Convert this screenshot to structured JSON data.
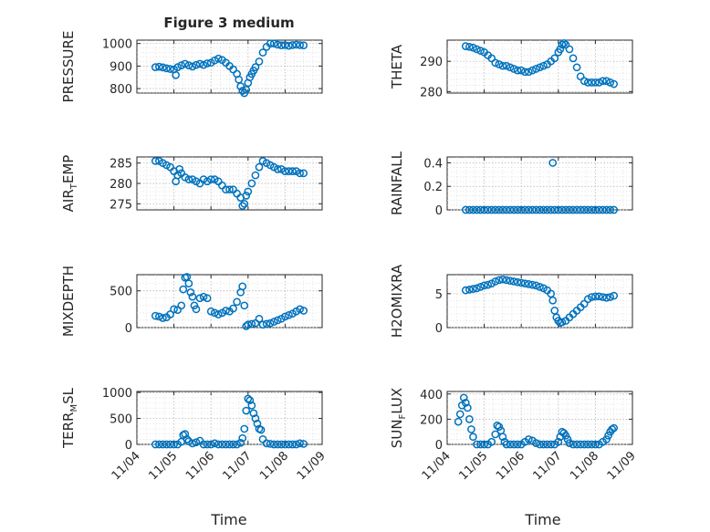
{
  "figure": {
    "title": "Figure 3 medium",
    "background": "#ffffff",
    "marker_color": "#0072BD",
    "x_label": "Time",
    "x_ticks": [
      "11/04",
      "11/05",
      "11/06",
      "11/07",
      "11/08",
      "11/09"
    ]
  },
  "chart_data": [
    {
      "type": "scatter",
      "title": "Figure 3 medium",
      "ylabel": "PRESSURE",
      "xlabel": "",
      "xlim": [
        0,
        5
      ],
      "ylim": [
        780,
        1015
      ],
      "yticks": [
        800,
        900,
        1000
      ],
      "ytick_labels": [
        "800",
        "900",
        "1000"
      ],
      "grid": true,
      "minor_grid": true,
      "x_unit": "days since 11/04",
      "series": [
        {
          "x": [
            0.5,
            0.6,
            0.7,
            0.8,
            0.9,
            1.0,
            1.05,
            1.1,
            1.2,
            1.3,
            1.4,
            1.5,
            1.6,
            1.7,
            1.8,
            1.9,
            2.0,
            2.1,
            2.2,
            2.3,
            2.4,
            2.5,
            2.6,
            2.7,
            2.75,
            2.8,
            2.85,
            2.9,
            2.95,
            3.0,
            3.05,
            3.1,
            3.15,
            3.2,
            3.3,
            3.4,
            3.5,
            3.6,
            3.7,
            3.8,
            3.9,
            4.0,
            4.1,
            4.2,
            4.3,
            4.4,
            4.5
          ],
          "y": [
            895,
            897,
            894,
            890,
            887,
            885,
            860,
            895,
            903,
            910,
            903,
            898,
            905,
            910,
            905,
            912,
            915,
            925,
            933,
            927,
            915,
            900,
            885,
            865,
            840,
            810,
            790,
            780,
            795,
            825,
            850,
            865,
            880,
            895,
            920,
            960,
            985,
            1000,
            1000,
            995,
            992,
            993,
            990,
            993,
            995,
            993,
            992
          ]
        }
      ]
    },
    {
      "type": "scatter",
      "title": "",
      "ylabel": "THETA",
      "xlabel": "",
      "xlim": [
        0,
        5
      ],
      "ylim": [
        279.5,
        297
      ],
      "yticks": [
        280,
        290
      ],
      "ytick_labels": [
        "280",
        "290"
      ],
      "grid": true,
      "minor_grid": true,
      "series": [
        {
          "x": [
            0.5,
            0.6,
            0.7,
            0.8,
            0.9,
            1.0,
            1.1,
            1.2,
            1.3,
            1.4,
            1.5,
            1.6,
            1.7,
            1.8,
            1.9,
            2.0,
            2.1,
            2.2,
            2.3,
            2.4,
            2.5,
            2.6,
            2.7,
            2.8,
            2.9,
            3.0,
            3.05,
            3.1,
            3.15,
            3.2,
            3.3,
            3.4,
            3.5,
            3.6,
            3.7,
            3.8,
            3.9,
            4.0,
            4.1,
            4.2,
            4.3,
            4.4,
            4.5
          ],
          "y": [
            295,
            294.8,
            294.5,
            294,
            293.5,
            293,
            292,
            291,
            289.5,
            289,
            288.5,
            288.5,
            288,
            287.5,
            287,
            287,
            286.5,
            286.5,
            287,
            287.5,
            288,
            288.5,
            289,
            290,
            291,
            293,
            294,
            295.5,
            296,
            295.5,
            294,
            291,
            288,
            285,
            283.5,
            283,
            283,
            283,
            283,
            283.5,
            283.5,
            283,
            282.5
          ]
        }
      ]
    },
    {
      "type": "scatter",
      "title": "",
      "ylabel": "AIR_TEMP",
      "xlabel": "",
      "xlim": [
        0,
        5
      ],
      "ylim": [
        273.5,
        286.5
      ],
      "yticks": [
        275,
        280,
        285
      ],
      "ytick_labels": [
        "275",
        "280",
        "285"
      ],
      "grid": true,
      "minor_grid": true,
      "series": [
        {
          "x": [
            0.5,
            0.6,
            0.7,
            0.8,
            0.9,
            1.0,
            1.05,
            1.1,
            1.15,
            1.2,
            1.3,
            1.4,
            1.5,
            1.6,
            1.7,
            1.8,
            1.9,
            2.0,
            2.1,
            2.2,
            2.3,
            2.4,
            2.5,
            2.6,
            2.7,
            2.8,
            2.85,
            2.9,
            2.95,
            3.0,
            3.1,
            3.2,
            3.3,
            3.4,
            3.5,
            3.6,
            3.7,
            3.8,
            3.9,
            4.0,
            4.1,
            4.2,
            4.3,
            4.4,
            4.5
          ],
          "y": [
            285.5,
            285.5,
            285,
            284.5,
            284,
            283,
            280.5,
            282,
            283.5,
            282.5,
            281.5,
            281,
            281,
            280.5,
            280,
            281,
            280.5,
            281,
            281,
            280.5,
            279.5,
            278.5,
            278.5,
            278.5,
            277.5,
            276.5,
            274.5,
            275,
            277,
            278,
            280,
            282,
            284,
            285.5,
            285,
            284.5,
            284,
            283.5,
            283.5,
            283,
            283,
            283,
            283,
            282.5,
            282.5
          ]
        }
      ]
    },
    {
      "type": "scatter",
      "title": "",
      "ylabel": "RAINFALL",
      "xlabel": "",
      "xlim": [
        0,
        5
      ],
      "ylim": [
        0,
        0.45
      ],
      "yticks": [
        0,
        0.2,
        0.4
      ],
      "ytick_labels": [
        "0",
        "0.2",
        "0.4"
      ],
      "grid": true,
      "minor_grid": true,
      "series": [
        {
          "x": [
            0.5,
            0.6,
            0.7,
            0.8,
            0.9,
            1.0,
            1.1,
            1.2,
            1.3,
            1.4,
            1.5,
            1.6,
            1.7,
            1.8,
            1.9,
            2.0,
            2.1,
            2.2,
            2.3,
            2.4,
            2.5,
            2.6,
            2.7,
            2.8,
            2.9,
            3.0,
            3.1,
            3.2,
            3.3,
            3.4,
            3.5,
            3.6,
            3.7,
            3.8,
            3.9,
            4.0,
            4.1,
            4.2,
            4.3,
            4.4,
            4.5,
            2.85
          ],
          "y": [
            0,
            0,
            0,
            0,
            0,
            0,
            0,
            0,
            0,
            0,
            0,
            0,
            0,
            0,
            0,
            0,
            0,
            0,
            0,
            0,
            0,
            0,
            0,
            0,
            0,
            0,
            0,
            0,
            0,
            0,
            0,
            0,
            0,
            0,
            0,
            0,
            0,
            0,
            0,
            0,
            0,
            0.4
          ]
        }
      ]
    },
    {
      "type": "scatter",
      "title": "",
      "ylabel": "MIXDEPTH",
      "xlabel": "",
      "xlim": [
        0,
        5
      ],
      "ylim": [
        0,
        720
      ],
      "yticks": [
        0,
        500
      ],
      "ytick_labels": [
        "0",
        "500"
      ],
      "grid": true,
      "minor_grid": true,
      "series": [
        {
          "x": [
            0.5,
            0.6,
            0.7,
            0.8,
            0.9,
            1.0,
            1.1,
            1.2,
            1.25,
            1.3,
            1.35,
            1.4,
            1.45,
            1.5,
            1.55,
            1.6,
            1.7,
            1.8,
            1.9,
            2.0,
            2.1,
            2.2,
            2.3,
            2.4,
            2.5,
            2.6,
            2.7,
            2.8,
            2.85,
            2.9,
            2.95,
            3.0,
            3.1,
            3.2,
            3.3,
            3.4,
            3.5,
            3.6,
            3.7,
            3.8,
            3.9,
            4.0,
            4.1,
            4.2,
            4.3,
            4.4,
            4.5
          ],
          "y": [
            160,
            150,
            130,
            140,
            180,
            250,
            240,
            300,
            520,
            680,
            690,
            600,
            480,
            420,
            300,
            250,
            400,
            420,
            400,
            220,
            200,
            180,
            200,
            230,
            220,
            260,
            350,
            480,
            560,
            300,
            20,
            40,
            50,
            60,
            120,
            40,
            50,
            60,
            80,
            100,
            120,
            150,
            170,
            190,
            220,
            250,
            230
          ]
        }
      ]
    },
    {
      "type": "scatter",
      "title": "",
      "ylabel": "H2OMIXRA",
      "xlabel": "",
      "xlim": [
        0,
        5
      ],
      "ylim": [
        0,
        7.8
      ],
      "yticks": [
        0,
        5
      ],
      "ytick_labels": [
        "0",
        "5"
      ],
      "grid": true,
      "minor_grid": true,
      "series": [
        {
          "x": [
            0.5,
            0.6,
            0.7,
            0.8,
            0.9,
            1.0,
            1.1,
            1.2,
            1.3,
            1.4,
            1.5,
            1.6,
            1.7,
            1.8,
            1.9,
            2.0,
            2.1,
            2.2,
            2.3,
            2.4,
            2.5,
            2.6,
            2.7,
            2.8,
            2.85,
            2.9,
            2.95,
            3.0,
            3.05,
            3.1,
            3.2,
            3.3,
            3.4,
            3.5,
            3.6,
            3.7,
            3.8,
            3.9,
            4.0,
            4.1,
            4.2,
            4.3,
            4.4,
            4.5
          ],
          "y": [
            5.5,
            5.6,
            5.7,
            5.8,
            6.0,
            6.2,
            6.3,
            6.5,
            6.8,
            7.0,
            7.1,
            7.0,
            6.9,
            6.8,
            6.7,
            6.6,
            6.5,
            6.4,
            6.3,
            6.2,
            6.0,
            5.8,
            5.5,
            5.0,
            4.0,
            2.5,
            1.5,
            1.0,
            0.7,
            0.8,
            1.0,
            1.5,
            2.0,
            2.5,
            3.0,
            3.5,
            4.2,
            4.5,
            4.6,
            4.6,
            4.5,
            4.4,
            4.5,
            4.7
          ]
        }
      ]
    },
    {
      "type": "scatter",
      "title": "",
      "ylabel": "TERR_MSL",
      "xlabel": "",
      "xlim": [
        0,
        5
      ],
      "ylim": [
        0,
        1020
      ],
      "yticks": [
        0,
        500,
        1000
      ],
      "ytick_labels": [
        "0",
        "500",
        "1000"
      ],
      "grid": true,
      "minor_grid": true,
      "series": [
        {
          "x": [
            0.5,
            0.6,
            0.7,
            0.8,
            0.9,
            1.0,
            1.1,
            1.2,
            1.25,
            1.3,
            1.35,
            1.4,
            1.5,
            1.6,
            1.7,
            1.8,
            1.9,
            2.0,
            2.1,
            2.2,
            2.3,
            2.4,
            2.5,
            2.6,
            2.7,
            2.8,
            2.85,
            2.9,
            2.95,
            3.0,
            3.05,
            3.1,
            3.15,
            3.2,
            3.25,
            3.3,
            3.35,
            3.4,
            3.5,
            3.6,
            3.7,
            3.8,
            3.9,
            4.0,
            4.1,
            4.2,
            4.3,
            4.4,
            4.5
          ],
          "y": [
            0,
            0,
            0,
            0,
            0,
            0,
            0,
            50,
            180,
            200,
            100,
            60,
            20,
            40,
            70,
            0,
            0,
            0,
            20,
            0,
            0,
            0,
            0,
            0,
            0,
            30,
            120,
            300,
            650,
            880,
            850,
            750,
            600,
            500,
            400,
            300,
            280,
            100,
            20,
            10,
            0,
            0,
            0,
            0,
            0,
            0,
            0,
            20,
            10
          ]
        }
      ]
    },
    {
      "type": "scatter",
      "title": "",
      "ylabel": "SUN_FLUX",
      "xlabel": "",
      "xlim": [
        0,
        5
      ],
      "ylim": [
        0,
        420
      ],
      "yticks": [
        0,
        200,
        400
      ],
      "ytick_labels": [
        "0",
        "200",
        "400"
      ],
      "grid": true,
      "minor_grid": true,
      "series": [
        {
          "x": [
            0.3,
            0.35,
            0.4,
            0.45,
            0.5,
            0.55,
            0.6,
            0.65,
            0.7,
            0.8,
            0.9,
            1.0,
            1.1,
            1.2,
            1.3,
            1.35,
            1.4,
            1.45,
            1.5,
            1.55,
            1.6,
            1.7,
            1.8,
            1.9,
            2.0,
            2.1,
            2.2,
            2.3,
            2.4,
            2.5,
            2.6,
            2.7,
            2.8,
            2.9,
            3.0,
            3.05,
            3.1,
            3.15,
            3.2,
            3.25,
            3.3,
            3.4,
            3.5,
            3.6,
            3.7,
            3.8,
            3.9,
            4.0,
            4.1,
            4.2,
            4.3,
            4.35,
            4.4,
            4.45,
            4.5
          ],
          "y": [
            180,
            240,
            310,
            370,
            330,
            290,
            200,
            120,
            60,
            0,
            0,
            0,
            0,
            20,
            80,
            150,
            140,
            110,
            60,
            20,
            0,
            0,
            0,
            0,
            0,
            20,
            40,
            30,
            10,
            0,
            0,
            0,
            0,
            0,
            20,
            60,
            100,
            90,
            70,
            40,
            10,
            0,
            0,
            0,
            0,
            0,
            0,
            0,
            0,
            20,
            40,
            70,
            100,
            120,
            130
          ]
        }
      ]
    }
  ]
}
